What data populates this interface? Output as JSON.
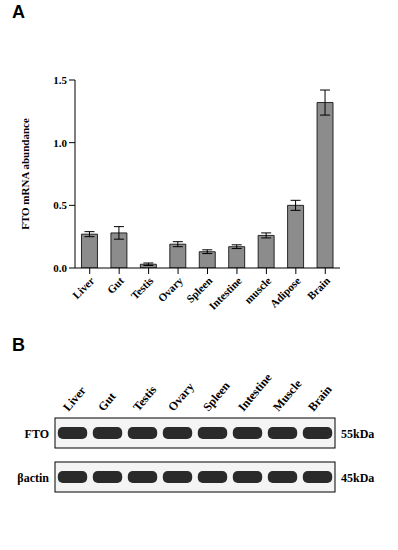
{
  "panel_labels": [
    "A",
    "B"
  ],
  "chart_data": {
    "type": "bar",
    "y_label": "FTO mRNA abundance",
    "categories": [
      "Liver",
      "Gut",
      "Testis",
      "Ovary",
      "Spleen",
      "Intestine",
      "muscle",
      "Adipose",
      "Brain"
    ],
    "values": [
      0.27,
      0.28,
      0.03,
      0.19,
      0.13,
      0.17,
      0.26,
      0.5,
      1.32
    ],
    "error": [
      0.02,
      0.05,
      0.01,
      0.02,
      0.015,
      0.015,
      0.02,
      0.04,
      0.1
    ],
    "color": "#8c8c8c",
    "ylim": [
      0,
      1.5
    ],
    "yticks": [
      {
        "value": 0,
        "label": "0.0"
      },
      0.5,
      {
        "value": 1,
        "label": "1.0"
      },
      1.5
    ],
    "grid": false
  },
  "blot": {
    "lanes": [
      "Liver",
      "Gut",
      "Testis",
      "Ovary",
      "Spleen",
      "Intestine",
      "Muscle",
      "Brain"
    ],
    "rows": [
      {
        "label": "FTO",
        "size": "55kDa"
      },
      {
        "label": "βactin",
        "size": "45kDa"
      }
    ]
  }
}
